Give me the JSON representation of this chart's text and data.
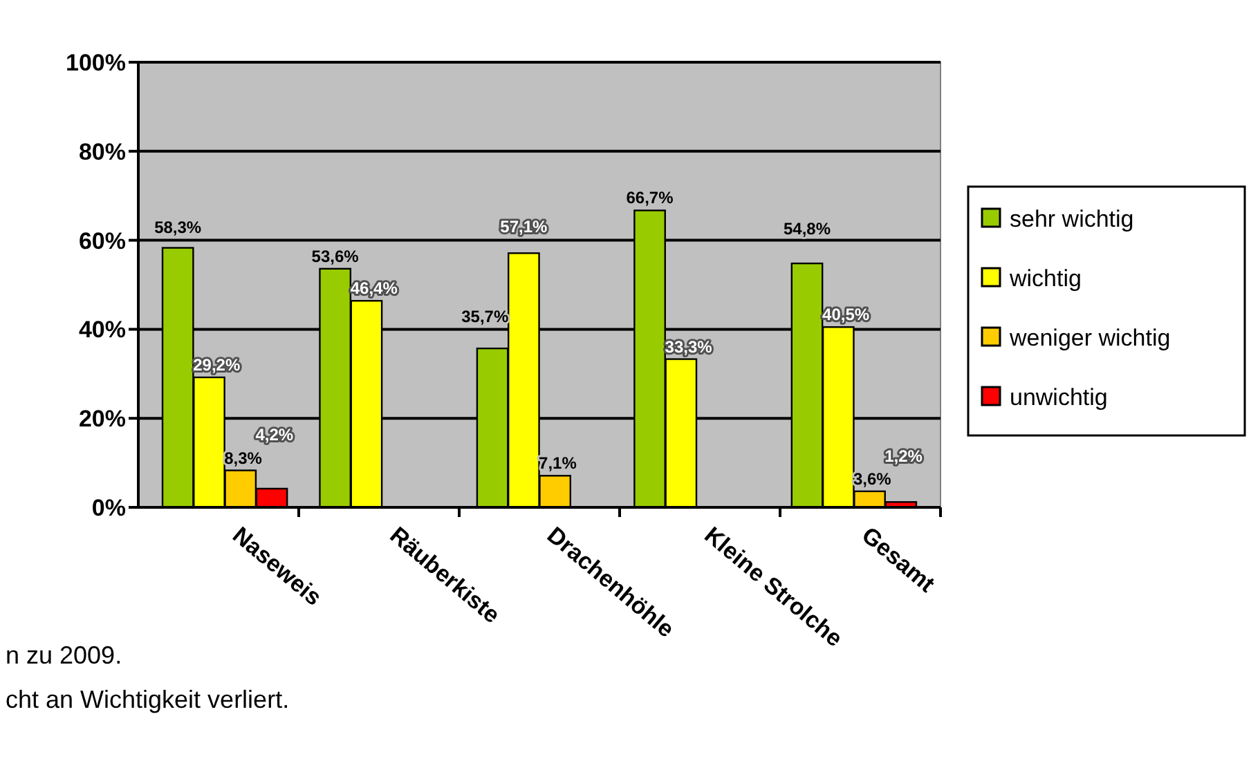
{
  "chart_data": {
    "type": "bar",
    "categories": [
      "Naseweis",
      "Räuberkiste",
      "Drachenhöhle",
      "Kleine Strolche",
      "Gesamt"
    ],
    "series": [
      {
        "name": "sehr wichtig",
        "color": "#99cc00",
        "values": [
          58.3,
          53.6,
          35.7,
          66.7,
          54.8
        ],
        "value_labels": [
          "58,3%",
          "53,6%",
          "35,7%",
          "66,7%",
          "54,8%"
        ]
      },
      {
        "name": "wichtig",
        "color": "#ffff00",
        "values": [
          29.2,
          46.4,
          57.1,
          33.3,
          40.5
        ],
        "value_labels": [
          "29,2%",
          "46,4%",
          "57,1%",
          "33,3%",
          "40,5%"
        ]
      },
      {
        "name": "weniger wichtig",
        "color": "#ffcc00",
        "values": [
          8.3,
          0,
          7.1,
          0,
          3.6
        ],
        "value_labels": [
          "8,3%",
          null,
          "7,1%",
          null,
          "3,6%"
        ]
      },
      {
        "name": "unwichtig",
        "color": "#ff0000",
        "values": [
          4.2,
          0,
          0,
          0,
          1.2
        ],
        "value_labels": [
          "4,2%",
          null,
          null,
          null,
          "1,2%"
        ]
      }
    ],
    "ylim": [
      0,
      100
    ],
    "yticks": [
      {
        "value": 0,
        "label": "0%"
      },
      {
        "value": 20,
        "label": "20%"
      },
      {
        "value": 40,
        "label": "40%"
      },
      {
        "value": 60,
        "label": "60%"
      },
      {
        "value": 80,
        "label": "80%"
      },
      {
        "value": 100,
        "label": "100%"
      }
    ],
    "grid": "y",
    "legend": "right",
    "annotations": [
      "n zu 2009.",
      "cht an Wichtigkeit verliert."
    ]
  }
}
